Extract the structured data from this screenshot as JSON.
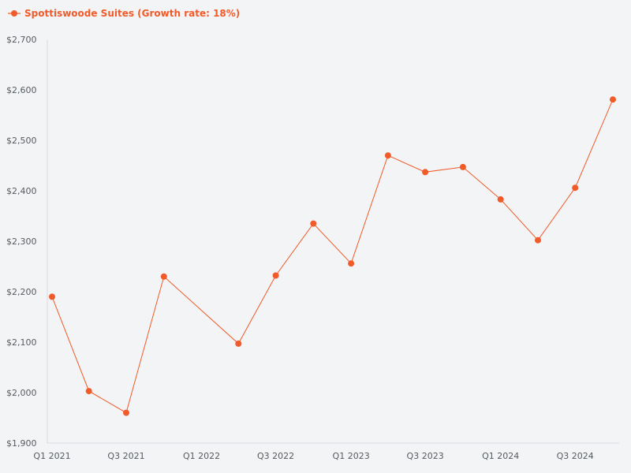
{
  "colors": {
    "series": "#f15a29",
    "axis": "#d7dae3",
    "background": "#f3f4f6"
  },
  "chart_data": {
    "type": "line",
    "title": "",
    "xlabel": "",
    "ylabel": "",
    "legend_position": "top-left",
    "grid": false,
    "ylim": [
      1900,
      2700
    ],
    "y_ticks": [
      1900,
      2000,
      2100,
      2200,
      2300,
      2400,
      2500,
      2600,
      2700
    ],
    "y_tick_labels": [
      "$1,900",
      "$2,000",
      "$2,100",
      "$2,200",
      "$2,300",
      "$2,400",
      "$2,500",
      "$2,600",
      "$2,700"
    ],
    "x": [
      "2021-01-01",
      "2021-04-01",
      "2021-07-01",
      "2021-10-01",
      "2022-04-01",
      "2022-07-01",
      "2022-10-01",
      "2023-01-01",
      "2023-04-01",
      "2023-07-01",
      "2023-10-01",
      "2024-01-01",
      "2024-04-01",
      "2024-07-01",
      "2024-10-01"
    ],
    "x_ticks": [
      "2021-01-01",
      "2021-07-01",
      "2022-01-01",
      "2022-07-01",
      "2023-01-01",
      "2023-07-01",
      "2024-01-01",
      "2024-07-01"
    ],
    "x_tick_labels": [
      "Q1 2021",
      "Q3 2021",
      "Q1 2022",
      "Q3 2022",
      "Q1 2023",
      "Q3 2023",
      "Q1 2024",
      "Q3 2024"
    ],
    "series": [
      {
        "name": "Spottiswoode Suites (Growth rate: 18%)",
        "values": [
          2190,
          2003,
          1960,
          2230,
          2097,
          2232,
          2335,
          2256,
          2470,
          2437,
          2447,
          2383,
          2302,
          2406,
          2581
        ]
      }
    ]
  }
}
